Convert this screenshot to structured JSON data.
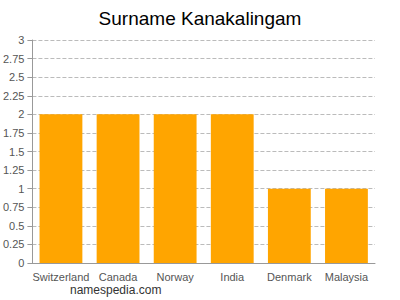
{
  "chart_data": {
    "type": "bar",
    "title": "Surname Kanakalingam",
    "categories": [
      "Switzerland",
      "Canada",
      "Norway",
      "India",
      "Denmark",
      "Malaysia"
    ],
    "values": [
      2,
      2,
      2,
      2,
      1,
      1
    ],
    "color": "#ffa500",
    "ylim": [
      0,
      3
    ],
    "yticks": [
      0,
      0.25,
      0.5,
      0.75,
      1,
      1.25,
      1.5,
      1.75,
      2,
      2.25,
      2.5,
      2.75,
      3
    ],
    "grid": true,
    "annotations": [
      "namespedia.com"
    ]
  }
}
